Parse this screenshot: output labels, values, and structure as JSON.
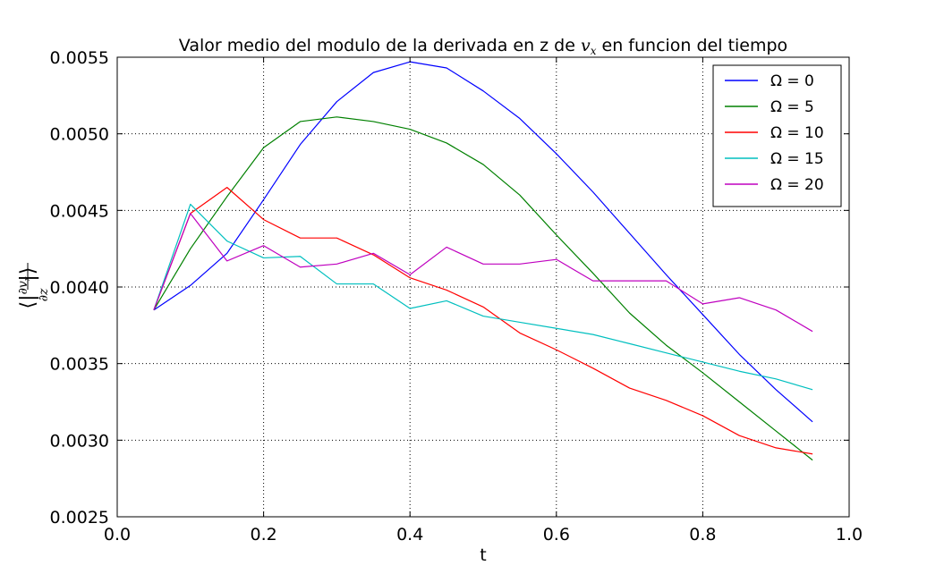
{
  "chart_data": {
    "type": "line",
    "title": "Valor medio del modulo de la derivada en z de v_x en funcion del tiempo",
    "title_parts": {
      "prefix": "Valor medio del modulo de la derivada en z de ",
      "var_base": "v",
      "var_sub": "x",
      "suffix": " en funcion del tiempo"
    },
    "xlabel": "t",
    "ylabel": "⟨|∂v_x/∂z|⟩",
    "ylabel_parts": {
      "open": "⟨",
      "bar_left": "|",
      "numerator": "∂v",
      "numerator_sub": "x",
      "denominator": "∂z",
      "bar_right": "|",
      "close": "⟩"
    },
    "xlim": [
      0.0,
      1.0
    ],
    "ylim": [
      0.0025,
      0.0055
    ],
    "xticks": [
      0.0,
      0.2,
      0.4,
      0.6,
      0.8,
      1.0
    ],
    "xtick_labels": [
      "0.0",
      "0.2",
      "0.4",
      "0.6",
      "0.8",
      "1.0"
    ],
    "yticks": [
      0.0025,
      0.003,
      0.0035,
      0.004,
      0.0045,
      0.005,
      0.0055
    ],
    "ytick_labels": [
      "0.0025",
      "0.0030",
      "0.0035",
      "0.0040",
      "0.0045",
      "0.0050",
      "0.0055"
    ],
    "grid": true,
    "legend_position": "top-right",
    "x": [
      0.05,
      0.1,
      0.15,
      0.2,
      0.25,
      0.3,
      0.35,
      0.4,
      0.45,
      0.5,
      0.55,
      0.6,
      0.65,
      0.7,
      0.75,
      0.8,
      0.85,
      0.9,
      0.95
    ],
    "series": [
      {
        "name": "Ω = 0",
        "color": "#0000ff",
        "values": [
          0.00385,
          0.00401,
          0.00422,
          0.00457,
          0.00493,
          0.00521,
          0.0054,
          0.00547,
          0.00543,
          0.00528,
          0.0051,
          0.00487,
          0.00462,
          0.00435,
          0.00408,
          0.00382,
          0.00356,
          0.00333,
          0.00312
        ]
      },
      {
        "name": "Ω = 5",
        "color": "#008000",
        "values": [
          0.00385,
          0.00425,
          0.00459,
          0.00491,
          0.00508,
          0.00511,
          0.00508,
          0.00503,
          0.00494,
          0.0048,
          0.0046,
          0.00434,
          0.00409,
          0.00383,
          0.00362,
          0.00344,
          0.00325,
          0.00306,
          0.00287
        ]
      },
      {
        "name": "Ω = 10",
        "color": "#ff0000",
        "values": [
          0.00385,
          0.00448,
          0.00465,
          0.00444,
          0.00432,
          0.00432,
          0.00421,
          0.00406,
          0.00398,
          0.00387,
          0.0037,
          0.00359,
          0.00347,
          0.00334,
          0.00326,
          0.00316,
          0.00303,
          0.00295,
          0.00291
        ]
      },
      {
        "name": "Ω = 15",
        "color": "#00bfbf",
        "values": [
          0.00385,
          0.00454,
          0.0043,
          0.00419,
          0.0042,
          0.00402,
          0.00402,
          0.00386,
          0.00391,
          0.00381,
          0.00377,
          0.00373,
          0.00369,
          0.00363,
          0.00357,
          0.00351,
          0.00345,
          0.0034,
          0.00333
        ]
      },
      {
        "name": "Ω = 20",
        "color": "#bf00bf",
        "values": [
          0.00385,
          0.00448,
          0.00417,
          0.00427,
          0.00413,
          0.00415,
          0.00422,
          0.00408,
          0.00426,
          0.00415,
          0.00415,
          0.00418,
          0.00404,
          0.00404,
          0.00404,
          0.00389,
          0.00393,
          0.00385,
          0.00371
        ]
      }
    ]
  }
}
